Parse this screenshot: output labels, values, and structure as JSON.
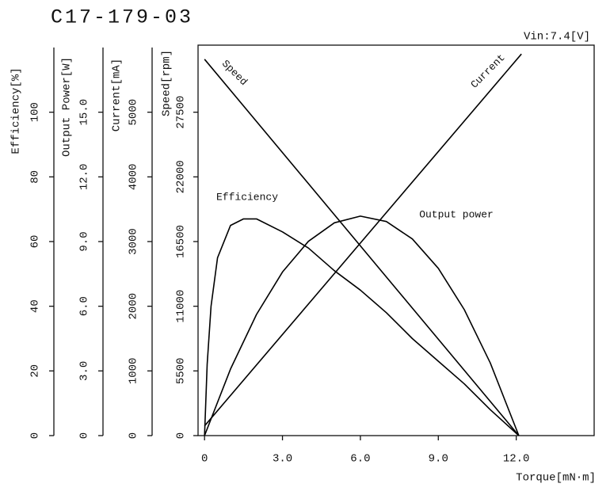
{
  "chart_data": {
    "type": "line",
    "title": "C17-179-03",
    "subtitle": "Vin:7.4[V]",
    "x_label": "Torque[mN·m]",
    "xlim": [
      -0.25,
      15
    ],
    "xticks": [
      0,
      {
        "value": 3,
        "label": "3.0"
      },
      {
        "value": 6,
        "label": "6.0"
      },
      {
        "value": 9,
        "label": "9.0"
      },
      {
        "value": 12,
        "label": "12.0"
      }
    ],
    "y_axes": [
      {
        "label": "Efficiency[%]",
        "ylim": [
          0,
          120
        ],
        "yticks": [
          0,
          20,
          40,
          60,
          80,
          100
        ]
      },
      {
        "label": "Output Power[W]",
        "ylim": [
          0,
          18
        ],
        "yticks": [
          0,
          {
            "value": 3,
            "label": "3.0"
          },
          {
            "value": 6,
            "label": "6.0"
          },
          {
            "value": 9,
            "label": "9.0"
          },
          {
            "value": 12,
            "label": "12.0"
          },
          {
            "value": 15,
            "label": "15.0"
          }
        ]
      },
      {
        "label": "Current[mA]",
        "ylim": [
          0,
          6000
        ],
        "yticks": [
          0,
          1000,
          2000,
          3000,
          4000,
          5000
        ]
      },
      {
        "label": "Speed[rpm]",
        "ylim": [
          0,
          33000
        ],
        "yticks": [
          0,
          5500,
          11000,
          16500,
          22000,
          27500
        ]
      }
    ],
    "series": [
      {
        "name": "Speed",
        "color": "#000000",
        "axis": 3,
        "x": [
          0,
          12.1
        ],
        "values": [
          32000,
          0
        ]
      },
      {
        "name": "Current",
        "color": "#000000",
        "axis": 2,
        "x": [
          0,
          12.2
        ],
        "values": [
          150,
          5900
        ]
      },
      {
        "name": "Efficiency",
        "color": "#000000",
        "axis": 0,
        "x": [
          0,
          0.1,
          0.25,
          0.5,
          1,
          1.5,
          2,
          3,
          4,
          5,
          6,
          7,
          8,
          9,
          10,
          11,
          12.1
        ],
        "values": [
          0,
          22,
          40,
          55,
          65,
          67,
          67,
          63,
          58,
          51,
          45,
          38,
          30,
          23,
          16,
          8,
          0
        ]
      },
      {
        "name": "Output power",
        "color": "#000000",
        "axis": 1,
        "x": [
          0,
          1,
          2,
          3,
          4,
          5,
          6,
          7,
          8,
          9,
          10,
          11,
          12.1
        ],
        "values": [
          0,
          3.09,
          5.62,
          7.59,
          9.01,
          9.87,
          10.18,
          9.93,
          9.12,
          7.76,
          5.84,
          3.37,
          0
        ]
      }
    ]
  }
}
